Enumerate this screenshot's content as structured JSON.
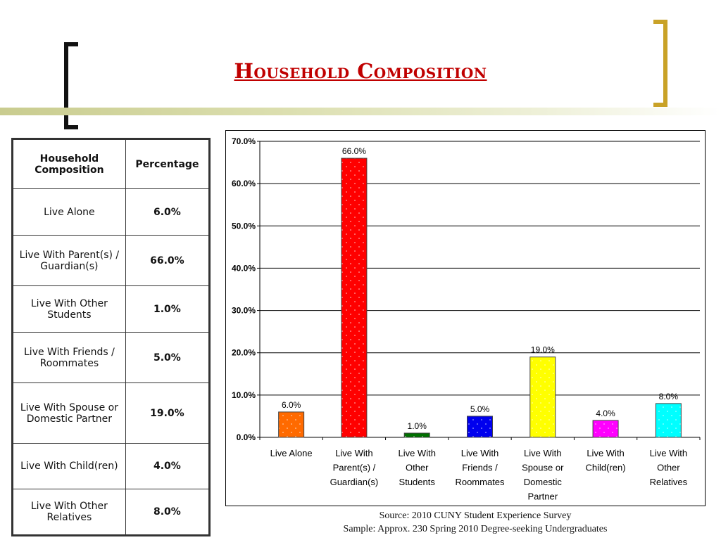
{
  "title": "Household Composition",
  "table": {
    "headers": [
      "Household Composition",
      "Percentage"
    ],
    "rows": [
      {
        "label": "Live Alone",
        "value": "6.0%"
      },
      {
        "label": "Live With Parent(s) / Guardian(s)",
        "value": "66.0%"
      },
      {
        "label": "Live With Other Students",
        "value": "1.0%"
      },
      {
        "label": "Live With Friends / Roommates",
        "value": "5.0%"
      },
      {
        "label": "Live With Spouse or Domestic Partner",
        "value": "19.0%"
      },
      {
        "label": "Live With Child(ren)",
        "value": "4.0%"
      },
      {
        "label": "Live With Other Relatives",
        "value": "8.0%"
      }
    ]
  },
  "chart_data": {
    "type": "bar",
    "categories": [
      [
        "Live Alone"
      ],
      [
        "Live With",
        "Parent(s) /",
        "Guardian(s)"
      ],
      [
        "Live With",
        "Other",
        "Students"
      ],
      [
        "Live With",
        "Friends /",
        "Roommates"
      ],
      [
        "Live With",
        "Spouse or",
        "Domestic",
        "Partner"
      ],
      [
        "Live With",
        "Child(ren)"
      ],
      [
        "Live With",
        "Other",
        "Relatives"
      ]
    ],
    "values": [
      6.0,
      66.0,
      1.0,
      5.0,
      19.0,
      4.0,
      8.0
    ],
    "data_labels": [
      "6.0%",
      "66.0%",
      "1.0%",
      "5.0%",
      "19.0%",
      "4.0%",
      "8.0%"
    ],
    "bar_colors": [
      "#ff6a00",
      "#ff0000",
      "#007000",
      "#0000ee",
      "#ffff00",
      "#ff00ff",
      "#00ffff"
    ],
    "ylim": [
      0,
      70
    ],
    "yticks": [
      "0.0%",
      "10.0%",
      "20.0%",
      "30.0%",
      "40.0%",
      "50.0%",
      "60.0%",
      "70.0%"
    ],
    "grid": true,
    "title": "",
    "xlabel": "",
    "ylabel": ""
  },
  "source": {
    "line1": "Source: 2010 CUNY Student Experience Survey",
    "line2": "Sample: Approx. 230 Spring 2010 Degree-seeking Undergraduates"
  }
}
